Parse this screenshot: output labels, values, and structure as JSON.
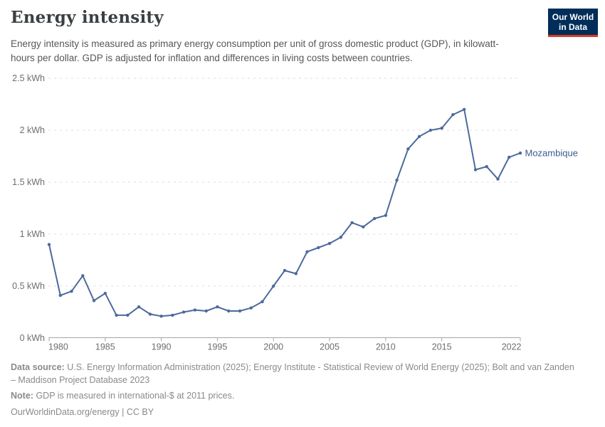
{
  "header": {
    "title": "Energy intensity",
    "subtitle": "Energy intensity is measured as primary energy consumption per unit of gross domestic product (GDP), in kilowatt-hours per dollar. GDP is adjusted for inflation and differences in living costs between countries.",
    "logo": {
      "line1": "Our World",
      "line2": "in Data"
    }
  },
  "chart_data": {
    "type": "line",
    "title": "Energy intensity",
    "unit": "kWh",
    "xlabel": "",
    "ylabel": "",
    "xlim": [
      1980,
      2022
    ],
    "ylim": [
      0,
      2.5
    ],
    "grid": "horizontal-dashed",
    "x_ticks": [
      1980,
      1985,
      1990,
      1995,
      2000,
      2005,
      2010,
      2015,
      2022
    ],
    "y_ticks": [
      {
        "value": 0,
        "label": "0 kWh"
      },
      {
        "value": 0.5,
        "label": "0.5 kWh"
      },
      {
        "value": 1,
        "label": "1 kWh"
      },
      {
        "value": 1.5,
        "label": "1.5 kWh"
      },
      {
        "value": 2,
        "label": "2 kWh"
      },
      {
        "value": 2.5,
        "label": "2.5 kWh"
      }
    ],
    "x": [
      1980,
      1981,
      1982,
      1983,
      1984,
      1985,
      1986,
      1987,
      1988,
      1989,
      1990,
      1991,
      1992,
      1993,
      1994,
      1995,
      1996,
      1997,
      1998,
      1999,
      2000,
      2001,
      2002,
      2003,
      2004,
      2005,
      2006,
      2007,
      2008,
      2009,
      2010,
      2011,
      2012,
      2013,
      2014,
      2015,
      2016,
      2017,
      2018,
      2019,
      2020,
      2021,
      2022
    ],
    "series": [
      {
        "name": "Mozambique",
        "values": [
          0.9,
          0.41,
          0.45,
          0.6,
          0.36,
          0.43,
          0.22,
          0.22,
          0.3,
          0.23,
          0.21,
          0.22,
          0.25,
          0.27,
          0.26,
          0.3,
          0.26,
          0.26,
          0.29,
          0.35,
          0.5,
          0.65,
          0.62,
          0.83,
          0.87,
          0.91,
          0.97,
          1.11,
          1.07,
          1.15,
          1.18,
          1.52,
          1.82,
          1.94,
          2.0,
          2.02,
          2.15,
          2.2,
          1.62,
          1.65,
          1.53,
          1.74,
          1.78
        ]
      }
    ],
    "legend_position": "end-of-line-label"
  },
  "footer": {
    "source_label": "Data source:",
    "source_text": "U.S. Energy Information Administration (2025); Energy Institute - Statistical Review of World Energy (2025); Bolt and van Zanden – Maddison Project Database 2023",
    "note_label": "Note:",
    "note_text": "GDP is measured in international-$ at 2011 prices.",
    "url": "OurWorldinData.org/energy",
    "divider": " | ",
    "license": "CC BY"
  },
  "colors": {
    "line": "#4c6a9c",
    "entity_label": "#3f5a8c",
    "grid": "#dedede",
    "axis": "#a5a5a5",
    "tick_text": "#6e6e6e",
    "title_text": "#3a3f42",
    "subtitle_text": "#575757",
    "footer_text": "#8a8a8a",
    "logo_navy": "#002d59",
    "logo_red": "#d73c22"
  }
}
